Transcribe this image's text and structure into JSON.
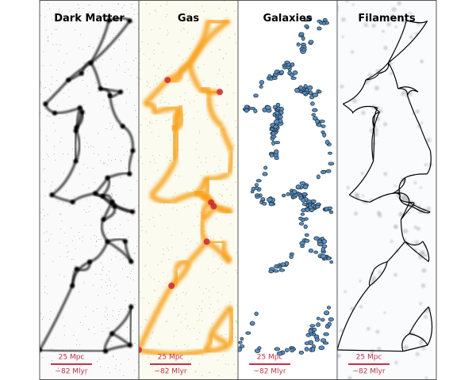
{
  "panels": [
    {
      "title": "Dark Matter",
      "scale_bar": {
        "length": "25 Mpc",
        "light_travel": "~82 Mlyr"
      }
    },
    {
      "title": "Gas",
      "scale_bar": {
        "length": "25 Mpc",
        "light_travel": "~82 Mlyr"
      }
    },
    {
      "title": "Galaxies",
      "scale_bar": {
        "length": "25 Mpc",
        "light_travel": "~82 Mlyr"
      }
    },
    {
      "title": "Filaments",
      "scale_bar": {
        "length": "25 Mpc",
        "light_travel": "~82 Mlyr"
      }
    }
  ]
}
